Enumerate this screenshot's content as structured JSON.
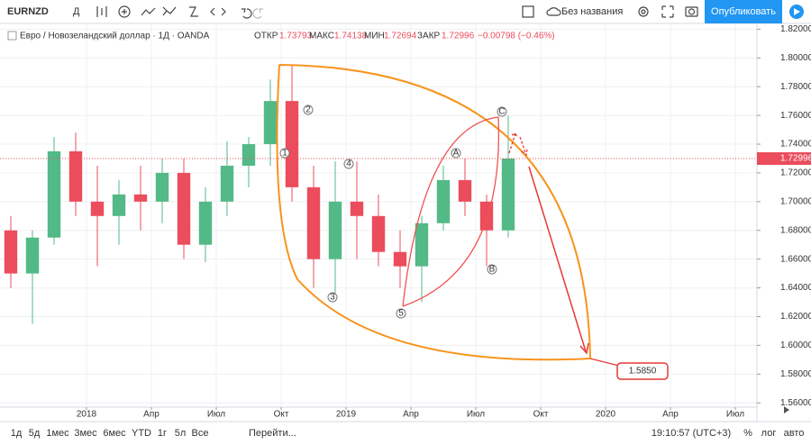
{
  "toolbar": {
    "symbol": "EURNZD",
    "interval": "Д",
    "layout_name": "Без названия",
    "publish": "Опубликовать"
  },
  "legend": {
    "title": "Евро / Новозеландский доллар · 1Д · OANDA",
    "open_label": "ОТКР",
    "open": "1.73793",
    "high_label": "МАКС",
    "high": "1.74138",
    "low_label": "МИН",
    "low": "1.72694",
    "close_label": "ЗАКР",
    "close": "1.72996",
    "change": "−0.00798 (−0.46%)"
  },
  "bottom_bar": {
    "ranges": [
      "1д",
      "5д",
      "1мес",
      "3мес",
      "6мес",
      "YTD",
      "1г",
      "5л",
      "Все"
    ],
    "goto": "Перейти...",
    "clock": "19:10:57 (UTC+3)",
    "percent": "%",
    "log": "лог",
    "auto": "авто"
  },
  "chart_data": {
    "type": "candlestick",
    "x": [
      "2017-09",
      "2017-10",
      "2017-11",
      "2017-12",
      "2018-01",
      "2018-02",
      "2018-03",
      "2018-04",
      "2018-05",
      "2018-06",
      "2018-07",
      "2018-08",
      "2018-09",
      "2018-10",
      "2018-11",
      "2018-12",
      "2019-01",
      "2019-02",
      "2019-03",
      "2019-04",
      "2019-05",
      "2019-06",
      "2019-07",
      "2019-08"
    ],
    "open": [
      1.68,
      1.65,
      1.675,
      1.735,
      1.7,
      1.69,
      1.705,
      1.7,
      1.72,
      1.67,
      1.7,
      1.725,
      1.74,
      1.77,
      1.71,
      1.66,
      1.7,
      1.69,
      1.665,
      1.655,
      1.685,
      1.715,
      1.7,
      1.68
    ],
    "high": [
      1.69,
      1.68,
      1.745,
      1.748,
      1.725,
      1.715,
      1.725,
      1.73,
      1.73,
      1.71,
      1.742,
      1.745,
      1.785,
      1.795,
      1.725,
      1.728,
      1.728,
      1.705,
      1.68,
      1.69,
      1.725,
      1.73,
      1.705,
      1.76
    ],
    "low": [
      1.64,
      1.615,
      1.67,
      1.69,
      1.655,
      1.67,
      1.68,
      1.685,
      1.66,
      1.658,
      1.69,
      1.71,
      1.725,
      1.7,
      1.64,
      1.635,
      1.66,
      1.655,
      1.64,
      1.63,
      1.68,
      1.69,
      1.655,
      1.675
    ],
    "close": [
      1.65,
      1.675,
      1.735,
      1.7,
      1.69,
      1.705,
      1.7,
      1.72,
      1.67,
      1.7,
      1.725,
      1.74,
      1.77,
      1.71,
      1.66,
      1.7,
      1.69,
      1.665,
      1.655,
      1.685,
      1.715,
      1.7,
      1.68,
      1.72996
    ],
    "up_color": "#53b987",
    "down_color": "#eb4d5c",
    "last_price": {
      "value": 1.72996,
      "label": "1.72996"
    },
    "xlim": [
      "2017-09",
      "2020-08"
    ],
    "xticks": [
      {
        "value": "2018-01",
        "label": "2018"
      },
      {
        "value": "2018-04",
        "label": "Апр"
      },
      {
        "value": "2018-07",
        "label": "Июл"
      },
      {
        "value": "2018-10",
        "label": "Окт"
      },
      {
        "value": "2019-01",
        "label": "2019"
      },
      {
        "value": "2019-04",
        "label": "Апр"
      },
      {
        "value": "2019-07",
        "label": "Июл"
      },
      {
        "value": "2019-10",
        "label": "Окт"
      },
      {
        "value": "2020-01",
        "label": "2020"
      },
      {
        "value": "2020-04",
        "label": "Апр"
      },
      {
        "value": "2020-07",
        "label": "Июл"
      }
    ],
    "ylim": [
      1.557,
      1.824
    ],
    "yticks": [
      {
        "value": 1.56,
        "label": "1.56000"
      },
      {
        "value": 1.58,
        "label": "1.58000"
      },
      {
        "value": 1.6,
        "label": "1.60000"
      },
      {
        "value": 1.62,
        "label": "1.62000"
      },
      {
        "value": 1.64,
        "label": "1.64000"
      },
      {
        "value": 1.66,
        "label": "1.66000"
      },
      {
        "value": 1.68,
        "label": "1.68000"
      },
      {
        "value": 1.7,
        "label": "1.70000"
      },
      {
        "value": 1.72,
        "label": "1.72000"
      },
      {
        "value": 1.74,
        "label": "1.74000"
      },
      {
        "value": 1.76,
        "label": "1.76000"
      },
      {
        "value": 1.78,
        "label": "1.78000"
      },
      {
        "value": 1.8,
        "label": "1.80000"
      },
      {
        "value": 1.82,
        "label": "1.82000"
      }
    ],
    "grid": true,
    "wave_labels": [
      "1",
      "2",
      "3",
      "4",
      "5",
      "A",
      "B",
      "C"
    ],
    "target_label": "1.5850"
  }
}
